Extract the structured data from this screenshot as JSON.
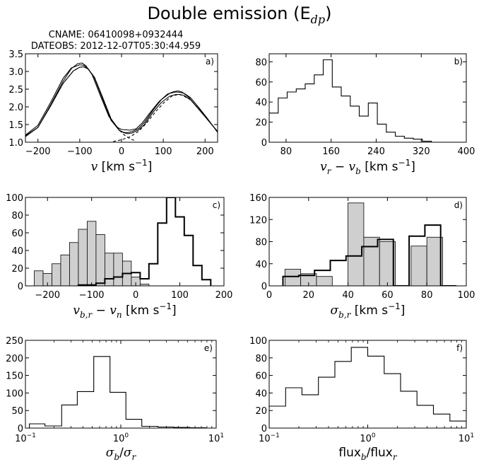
{
  "figure": {
    "title": "Double emission (E",
    "title_sub": "dp",
    "title_close": ")"
  },
  "chart_data": [
    {
      "id": "a",
      "type": "line",
      "panel_label": "a)",
      "header_lines": [
        "CNAME: 06410098+0932444",
        "DATEOBS: 2012-12-07T05:30:44.959"
      ],
      "xlabel_parts": [
        {
          "t": "v",
          "i": true
        },
        {
          "t": " [km s"
        },
        {
          "t": "−1",
          "sup": true
        },
        {
          "t": "]"
        }
      ],
      "xlim": [
        -230,
        230
      ],
      "ylim": [
        1.0,
        3.5
      ],
      "xticks": [
        -200,
        -100,
        0,
        100,
        200
      ],
      "xtick_labels": [
        "−200",
        "−100",
        "0",
        "100",
        "200"
      ],
      "yticks": [
        1.0,
        1.5,
        2.0,
        2.5,
        3.0,
        3.5
      ],
      "ytick_labels": [
        "1.0",
        "1.5",
        "2.0",
        "2.5",
        "3.0",
        "3.5"
      ],
      "series": [
        {
          "style": "solid",
          "x": [
            -230,
            -200,
            -170,
            -140,
            -120,
            -105,
            -95,
            -85,
            -70,
            -50,
            -30,
            -10,
            0,
            10,
            20,
            35,
            50,
            70,
            90,
            110,
            125,
            135,
            145,
            160,
            180,
            200,
            230
          ],
          "y": [
            1.18,
            1.42,
            2.05,
            2.72,
            3.08,
            3.22,
            3.24,
            3.16,
            2.9,
            2.3,
            1.72,
            1.42,
            1.36,
            1.35,
            1.34,
            1.38,
            1.55,
            1.86,
            2.15,
            2.36,
            2.43,
            2.45,
            2.42,
            2.28,
            2.0,
            1.72,
            1.3
          ]
        },
        {
          "style": "solid",
          "x": [
            -230,
            -200,
            -170,
            -140,
            -120,
            -100,
            -90,
            -80,
            -65,
            -45,
            -25,
            -5,
            5,
            15,
            25,
            40,
            55,
            75,
            95,
            115,
            130,
            140,
            150,
            165,
            185,
            205,
            230
          ],
          "y": [
            1.2,
            1.48,
            2.12,
            2.8,
            3.1,
            3.19,
            3.17,
            3.08,
            2.82,
            2.22,
            1.62,
            1.33,
            1.28,
            1.27,
            1.3,
            1.38,
            1.56,
            1.9,
            2.2,
            2.38,
            2.42,
            2.41,
            2.38,
            2.26,
            1.98,
            1.68,
            1.28
          ]
        },
        {
          "style": "solid",
          "x": [
            -230,
            -200,
            -170,
            -140,
            -115,
            -100,
            -90,
            -80,
            -65,
            -45,
            -25,
            -5,
            5,
            15,
            25,
            40,
            55,
            75,
            95,
            115,
            130,
            140,
            150,
            165,
            185,
            205,
            230
          ],
          "y": [
            1.16,
            1.42,
            2.02,
            2.66,
            3.02,
            3.12,
            3.13,
            3.07,
            2.84,
            2.26,
            1.66,
            1.34,
            1.27,
            1.24,
            1.26,
            1.34,
            1.5,
            1.84,
            2.12,
            2.3,
            2.35,
            2.35,
            2.32,
            2.2,
            1.94,
            1.66,
            1.3
          ]
        },
        {
          "style": "dashed",
          "x": [
            -230,
            -200,
            -170,
            -140,
            -115,
            -100,
            -90,
            -80,
            -65,
            -45,
            -25,
            -5,
            5,
            20,
            35
          ],
          "y": [
            1.16,
            1.42,
            2.02,
            2.66,
            3.02,
            3.12,
            3.13,
            3.07,
            2.84,
            2.26,
            1.66,
            1.34,
            1.22,
            1.1,
            1.03
          ]
        },
        {
          "style": "dashed",
          "x": [
            -20,
            0,
            20,
            40,
            60,
            80,
            100,
            120,
            135,
            145,
            165,
            185,
            205,
            230
          ],
          "y": [
            1.02,
            1.07,
            1.15,
            1.3,
            1.54,
            1.84,
            2.1,
            2.3,
            2.35,
            2.33,
            2.2,
            1.94,
            1.66,
            1.3
          ]
        }
      ]
    },
    {
      "id": "b",
      "type": "histogram",
      "panel_label": "b)",
      "xlabel_parts": [
        {
          "t": "v",
          "i": true
        },
        {
          "t": "r",
          "sub": true,
          "i": true
        },
        {
          "t": " − "
        },
        {
          "t": "v",
          "i": true
        },
        {
          "t": "b",
          "sub": true,
          "i": true
        },
        {
          "t": " [km s"
        },
        {
          "t": "−1",
          "sup": true
        },
        {
          "t": "]"
        }
      ],
      "xlim": [
        50,
        400
      ],
      "ylim": [
        0,
        88
      ],
      "xticks": [
        80,
        160,
        240,
        320,
        400
      ],
      "xtick_labels": [
        "80",
        "160",
        "240",
        "320",
        "400"
      ],
      "yticks": [
        0,
        20,
        40,
        60,
        80
      ],
      "ytick_labels": [
        "0",
        "20",
        "40",
        "60",
        "80"
      ],
      "series": [
        {
          "style": "step",
          "edges": [
            50,
            66,
            82,
            98,
            114,
            130,
            146,
            162,
            178,
            194,
            210,
            226,
            242,
            258,
            274,
            290,
            306,
            322,
            338,
            354
          ],
          "values": [
            29,
            44,
            50,
            53,
            58,
            67,
            82,
            55,
            46,
            36,
            26,
            39,
            18,
            10,
            6,
            4,
            3,
            1,
            0
          ]
        }
      ]
    },
    {
      "id": "c",
      "type": "histogram",
      "panel_label": "c)",
      "xlabel_parts": [
        {
          "t": "v",
          "i": true
        },
        {
          "t": "b,r",
          "sub": true,
          "i": true
        },
        {
          "t": " − "
        },
        {
          "t": "v",
          "i": true
        },
        {
          "t": "n",
          "sub": true,
          "i": true
        },
        {
          "t": " [km s"
        },
        {
          "t": "−1",
          "sup": true
        },
        {
          "t": "]"
        }
      ],
      "xlim": [
        -250,
        200
      ],
      "ylim": [
        0,
        100
      ],
      "xticks": [
        -200,
        -100,
        0,
        100,
        200
      ],
      "xtick_labels": [
        "−200",
        "−100",
        "0",
        "100",
        "200"
      ],
      "yticks": [
        0,
        20,
        40,
        60,
        80,
        100
      ],
      "ytick_labels": [
        "0",
        "20",
        "40",
        "60",
        "80",
        "100"
      ],
      "series": [
        {
          "style": "filled",
          "edges": [
            -230,
            -210,
            -190,
            -170,
            -150,
            -130,
            -110,
            -90,
            -70,
            -50,
            -30,
            -10,
            10,
            30
          ],
          "values": [
            17,
            14,
            25,
            35,
            49,
            64,
            73,
            58,
            37,
            37,
            28,
            10,
            2
          ]
        },
        {
          "style": "step-bold",
          "edges": [
            -130,
            -110,
            -90,
            -70,
            -50,
            -30,
            -10,
            10,
            30,
            50,
            70,
            90,
            110,
            130,
            150,
            170
          ],
          "values": [
            1,
            1,
            3,
            8,
            10,
            14,
            15,
            8,
            25,
            71,
            100,
            78,
            57,
            23,
            7
          ]
        }
      ]
    },
    {
      "id": "d",
      "type": "histogram",
      "panel_label": "d)",
      "xlabel_parts": [
        {
          "t": "σ",
          "i": true
        },
        {
          "t": "b,r",
          "sub": true,
          "i": true
        },
        {
          "t": " [km s"
        },
        {
          "t": "−1",
          "sup": true
        },
        {
          "t": "]"
        }
      ],
      "xlim": [
        0,
        100
      ],
      "ylim": [
        0,
        160
      ],
      "xticks": [
        0,
        20,
        40,
        60,
        80,
        100
      ],
      "xtick_labels": [
        "0",
        "20",
        "40",
        "60",
        "80",
        "100"
      ],
      "yticks": [
        0,
        40,
        80,
        120,
        160
      ],
      "ytick_labels": [
        "0",
        "40",
        "80",
        "120",
        "160"
      ],
      "series": [
        {
          "style": "filled",
          "edges": [
            8,
            16,
            24,
            32,
            40,
            48,
            56,
            64,
            72,
            80,
            88
          ],
          "values": [
            30,
            22,
            17,
            0,
            150,
            88,
            80,
            0,
            72,
            88
          ]
        },
        {
          "style": "step-bold",
          "edges": [
            7,
            15,
            23,
            31,
            39,
            47,
            55,
            63,
            71,
            79,
            87,
            95
          ],
          "values": [
            17,
            19,
            28,
            46,
            54,
            71,
            84,
            0,
            90,
            110,
            0
          ]
        }
      ]
    },
    {
      "id": "e",
      "type": "histogram",
      "panel_label": "e)",
      "xscale": "log",
      "xlabel_parts": [
        {
          "t": "σ",
          "i": true
        },
        {
          "t": "b",
          "sub": true,
          "i": true
        },
        {
          "t": "/"
        },
        {
          "t": "σ",
          "i": true
        },
        {
          "t": "r",
          "sub": true,
          "i": true
        }
      ],
      "xlim": [
        0.1,
        10
      ],
      "ylim": [
        0,
        250
      ],
      "xtick_labels_log": [
        {
          "base": "10",
          "exp": "−1"
        },
        {
          "base": "10",
          "exp": "0"
        },
        {
          "base": "10",
          "exp": "1"
        }
      ],
      "yticks": [
        0,
        50,
        100,
        150,
        200,
        250
      ],
      "ytick_labels": [
        "0",
        "50",
        "100",
        "150",
        "200",
        "250"
      ],
      "series": [
        {
          "style": "step",
          "edges": [
            0.11,
            0.16,
            0.24,
            0.35,
            0.52,
            0.77,
            1.13,
            1.66,
            2.45,
            3.6,
            5.3,
            7.8
          ],
          "values": [
            12,
            6,
            66,
            104,
            204,
            102,
            25,
            5,
            3,
            2,
            1
          ]
        }
      ]
    },
    {
      "id": "f",
      "type": "histogram",
      "panel_label": "f)",
      "xscale": "log",
      "xlabel_parts": [
        {
          "t": "flux"
        },
        {
          "t": "b",
          "sub": true,
          "i": true
        },
        {
          "t": "/flux"
        },
        {
          "t": "r",
          "sub": true,
          "i": true
        }
      ],
      "xlim": [
        0.1,
        10
      ],
      "ylim": [
        0,
        100
      ],
      "xtick_labels_log": [
        {
          "base": "10",
          "exp": "−1"
        },
        {
          "base": "10",
          "exp": "0"
        },
        {
          "base": "10",
          "exp": "1"
        }
      ],
      "yticks": [
        0,
        20,
        40,
        60,
        80,
        100
      ],
      "ytick_labels": [
        "0",
        "20",
        "40",
        "60",
        "80",
        "100"
      ],
      "series": [
        {
          "style": "step",
          "edges": [
            0.1,
            0.147,
            0.215,
            0.316,
            0.464,
            0.681,
            1.0,
            1.468,
            2.154,
            3.162,
            4.642,
            6.813,
            10
          ],
          "values": [
            25,
            46,
            38,
            58,
            76,
            92,
            82,
            62,
            42,
            26,
            16,
            8
          ]
        }
      ]
    }
  ]
}
